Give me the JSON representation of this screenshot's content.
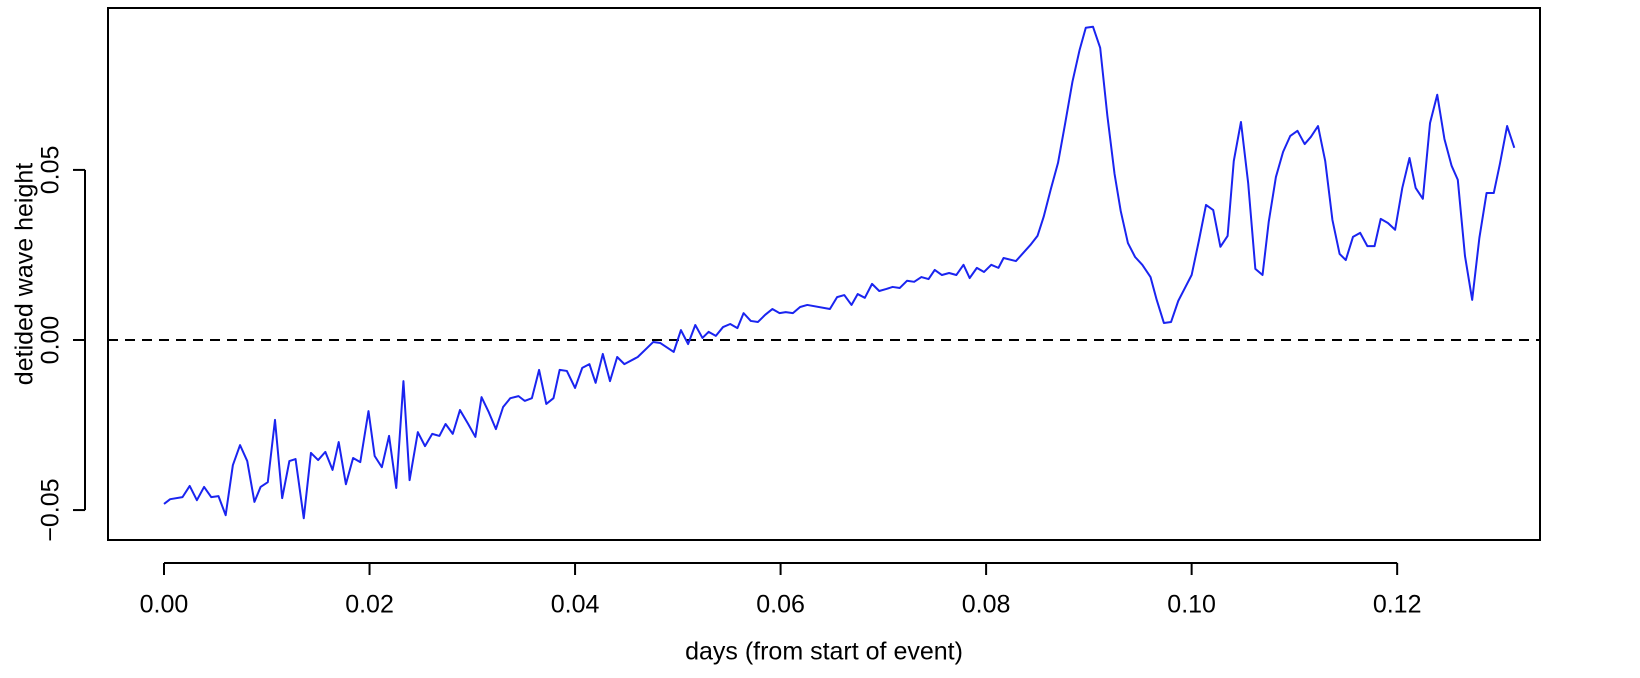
{
  "chart_data": {
    "type": "line",
    "x_label": "days (from start of event)",
    "y_label": "detided wave height",
    "xlim": [
      -0.00545,
      0.1339
    ],
    "ylim": [
      -0.0588,
      0.0976
    ],
    "xticks": [
      {
        "value": 0,
        "label": "0.00"
      },
      {
        "value": 0.02,
        "label": "0.02"
      },
      {
        "value": 0.04,
        "label": "0.04"
      },
      {
        "value": 0.06,
        "label": "0.06"
      },
      {
        "value": 0.08,
        "label": "0.08"
      },
      {
        "value": 0.1,
        "label": "0.10"
      },
      {
        "value": 0.12,
        "label": "0.12"
      }
    ],
    "yticks": [
      {
        "value": -0.05,
        "label": "−0.05"
      },
      {
        "value": 0,
        "label": "0.00"
      },
      {
        "value": 0.05,
        "label": "0.05"
      }
    ],
    "reference_line": {
      "y": 0,
      "style": "dashed",
      "color": "#000000"
    },
    "series": [
      {
        "color": "#1a24f0",
        "x": [
          0.0,
          0.0006,
          0.0018,
          0.0025,
          0.0032,
          0.0039,
          0.0046,
          0.0053,
          0.006,
          0.0067,
          0.0074,
          0.0081,
          0.0088,
          0.0094,
          0.0101,
          0.0108,
          0.0115,
          0.0122,
          0.0128,
          0.0136,
          0.0143,
          0.015,
          0.0157,
          0.0164,
          0.017,
          0.0177,
          0.0184,
          0.0191,
          0.0199,
          0.0205,
          0.0212,
          0.0219,
          0.0226,
          0.0233,
          0.0239,
          0.0247,
          0.0254,
          0.0261,
          0.0268,
          0.0274,
          0.0281,
          0.0288,
          0.0296,
          0.0303,
          0.0309,
          0.0316,
          0.0323,
          0.033,
          0.0337,
          0.0345,
          0.0351,
          0.0358,
          0.0365,
          0.0372,
          0.0379,
          0.0385,
          0.0392,
          0.04,
          0.0407,
          0.0414,
          0.042,
          0.0427,
          0.0434,
          0.0441,
          0.0448,
          0.0461,
          0.0476,
          0.0483,
          0.0496,
          0.0503,
          0.051,
          0.0517,
          0.0524,
          0.053,
          0.0537,
          0.0544,
          0.0551,
          0.0558,
          0.0564,
          0.0571,
          0.0578,
          0.0585,
          0.0592,
          0.0599,
          0.0605,
          0.0612,
          0.0619,
          0.0626,
          0.0648,
          0.0655,
          0.0662,
          0.0669,
          0.0675,
          0.0682,
          0.0689,
          0.0696,
          0.0703,
          0.0709,
          0.0716,
          0.0723,
          0.073,
          0.0737,
          0.0744,
          0.075,
          0.0757,
          0.0764,
          0.0771,
          0.0778,
          0.0784,
          0.0791,
          0.0798,
          0.0805,
          0.0812,
          0.0817,
          0.0829,
          0.0843,
          0.085,
          0.0856,
          0.0863,
          0.087,
          0.0877,
          0.0884,
          0.0891,
          0.0897,
          0.0904,
          0.0911,
          0.0918,
          0.0925,
          0.0931,
          0.0938,
          0.0945,
          0.0952,
          0.096,
          0.0966,
          0.0973,
          0.098,
          0.0987,
          0.0994,
          0.1,
          0.1007,
          0.1014,
          0.1021,
          0.1028,
          0.1035,
          0.1041,
          0.1048,
          0.1055,
          0.1062,
          0.1069,
          0.1075,
          0.1082,
          0.1089,
          0.1096,
          0.1103,
          0.111,
          0.1116,
          0.1123,
          0.113,
          0.1137,
          0.1144,
          0.115,
          0.1157,
          0.1164,
          0.1171,
          0.1178,
          0.1184,
          0.1191,
          0.1198,
          0.1205,
          0.1212,
          0.1218,
          0.1225,
          0.1232,
          0.1239,
          0.1246,
          0.1253,
          0.1259,
          0.1266,
          0.1273,
          0.128,
          0.1287,
          0.1294,
          0.13,
          0.1307,
          0.1314
        ],
        "values": [
          -0.0482,
          -0.0468,
          -0.0462,
          -0.0429,
          -0.0471,
          -0.0432,
          -0.0462,
          -0.0459,
          -0.0515,
          -0.0368,
          -0.0309,
          -0.0356,
          -0.0476,
          -0.0432,
          -0.0418,
          -0.0235,
          -0.0465,
          -0.0356,
          -0.035,
          -0.0524,
          -0.0332,
          -0.0353,
          -0.0329,
          -0.0382,
          -0.03,
          -0.0424,
          -0.0347,
          -0.0359,
          -0.0209,
          -0.0341,
          -0.0374,
          -0.0282,
          -0.0435,
          -0.0121,
          -0.0412,
          -0.0271,
          -0.0312,
          -0.0276,
          -0.0282,
          -0.0247,
          -0.0276,
          -0.0206,
          -0.0247,
          -0.0285,
          -0.0168,
          -0.0212,
          -0.0262,
          -0.0197,
          -0.0171,
          -0.0165,
          -0.0179,
          -0.0171,
          -0.0088,
          -0.0188,
          -0.0171,
          -0.0088,
          -0.0091,
          -0.0141,
          -0.0082,
          -0.0071,
          -0.0126,
          -0.0041,
          -0.0121,
          -0.005,
          -0.0071,
          -0.005,
          -0.0006,
          -0.0009,
          -0.0035,
          0.0029,
          -0.0012,
          0.0044,
          0.0006,
          0.0024,
          0.0012,
          0.0038,
          0.0047,
          0.0035,
          0.0079,
          0.0056,
          0.0053,
          0.0074,
          0.0091,
          0.0079,
          0.0082,
          0.0079,
          0.0097,
          0.0103,
          0.0091,
          0.0126,
          0.0132,
          0.0103,
          0.0135,
          0.0124,
          0.0165,
          0.0144,
          0.015,
          0.0156,
          0.0153,
          0.0174,
          0.0171,
          0.0185,
          0.0179,
          0.0206,
          0.0191,
          0.0197,
          0.0191,
          0.0221,
          0.0182,
          0.0212,
          0.02,
          0.0221,
          0.0212,
          0.0241,
          0.0232,
          0.0279,
          0.0306,
          0.0362,
          0.0444,
          0.0521,
          0.0638,
          0.0759,
          0.0853,
          0.0918,
          0.0921,
          0.0859,
          0.0659,
          0.0488,
          0.0379,
          0.0285,
          0.0244,
          0.0221,
          0.0185,
          0.0118,
          0.005,
          0.0053,
          0.0115,
          0.0156,
          0.0191,
          0.0291,
          0.0397,
          0.0382,
          0.0274,
          0.0306,
          0.0526,
          0.0641,
          0.0462,
          0.0209,
          0.0191,
          0.0347,
          0.0479,
          0.0553,
          0.06,
          0.0615,
          0.0576,
          0.0597,
          0.0629,
          0.0526,
          0.0353,
          0.0253,
          0.0235,
          0.0303,
          0.0315,
          0.0276,
          0.0276,
          0.0356,
          0.0344,
          0.0324,
          0.0447,
          0.0535,
          0.0447,
          0.0415,
          0.0638,
          0.0721,
          0.0591,
          0.0512,
          0.0471,
          0.0247,
          0.0118,
          0.03,
          0.0432,
          0.0432,
          0.0518,
          0.0629,
          0.0565
        ]
      }
    ]
  }
}
